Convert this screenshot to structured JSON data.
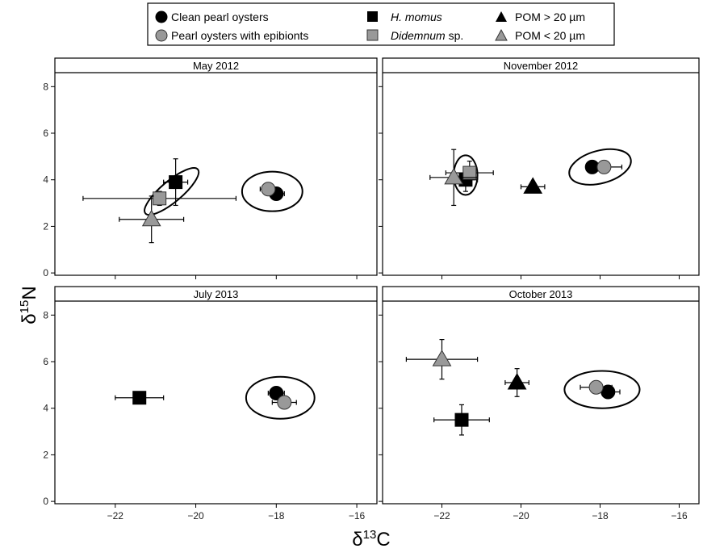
{
  "chart_data": {
    "type": "scatter",
    "xlabel": "δ13C",
    "xlabel_parts": [
      "δ",
      "13",
      "C"
    ],
    "ylabel": "δ15N",
    "ylabel_parts": [
      "δ",
      "15",
      "N"
    ],
    "xlim": [
      -23.5,
      -15.5
    ],
    "ylim": [
      -0.1,
      8.6
    ],
    "xticks": [
      -22,
      -20,
      -18,
      -16
    ],
    "yticks": [
      0,
      2,
      4,
      6,
      8
    ],
    "colors": {
      "black": "#000000",
      "gray": "#999999",
      "light_gray": "#bbbbbb"
    },
    "legend": {
      "placement": "top",
      "entries": [
        {
          "id": "clean",
          "text": "Clean pearl oysters",
          "marker": "circle",
          "color": "#000000"
        },
        {
          "id": "epi",
          "text": "Pearl oysters with epibionts",
          "marker": "circle",
          "color": "#999999"
        },
        {
          "id": "hmomus",
          "text": "H. momus",
          "italic": "H. momus",
          "rest": "",
          "marker": "square",
          "color": "#000000"
        },
        {
          "id": "did",
          "text": "Didemnum sp.",
          "italic": "Didemnum",
          "rest": " sp.",
          "marker": "square",
          "color": "#999999"
        },
        {
          "id": "pomL",
          "text": "POM > 20 µm",
          "marker": "triangle",
          "color": "#000000"
        },
        {
          "id": "pomS",
          "text": "POM < 20 µm",
          "marker": "triangle",
          "color": "#999999"
        }
      ]
    },
    "panels": [
      {
        "title": "May 2012",
        "points": [
          {
            "series": "clean",
            "x": -18.0,
            "y": 3.4,
            "xerr": 0.2,
            "yerr": 0
          },
          {
            "series": "epi",
            "x": -18.2,
            "y": 3.6,
            "xerr": 0.2,
            "yerr": 0
          },
          {
            "series": "hmomus",
            "x": -20.5,
            "y": 3.9,
            "xerr": 0.3,
            "yerr": 1.0
          },
          {
            "series": "did",
            "x": -20.9,
            "y": 3.2,
            "xerr": 1.9,
            "yerr": 0.3
          },
          {
            "series": "pomS",
            "x": -21.1,
            "y": 2.3,
            "xerr": 0.8,
            "yerr": 1.0
          }
        ],
        "ellipses": [
          {
            "cx": -18.1,
            "cy": 3.5,
            "rx": 0.75,
            "ry": 0.85,
            "angle": 0
          },
          {
            "cx": -20.6,
            "cy": 3.5,
            "rx": 0.85,
            "ry": 0.45,
            "angle": -40
          }
        ]
      },
      {
        "title": "November 2012",
        "points": [
          {
            "series": "clean",
            "x": -18.2,
            "y": 4.55,
            "xerr": 0,
            "yerr": 0
          },
          {
            "series": "epi",
            "x": -17.9,
            "y": 4.55,
            "xerr": 0.45,
            "yerr": 0
          },
          {
            "series": "hmomus",
            "x": -21.4,
            "y": 4.0,
            "xerr": 0.3,
            "yerr": 0.5
          },
          {
            "series": "did",
            "x": -21.3,
            "y": 4.3,
            "xerr": 0.6,
            "yerr": 0.5
          },
          {
            "series": "pomL",
            "x": -19.7,
            "y": 3.7,
            "xerr": 0.3,
            "yerr": 0
          },
          {
            "series": "pomS",
            "x": -21.7,
            "y": 4.1,
            "xerr": 0.6,
            "yerr": 1.2
          }
        ],
        "ellipses": [
          {
            "cx": -18.0,
            "cy": 4.55,
            "rx": 0.8,
            "ry": 0.7,
            "angle": -15
          },
          {
            "cx": -21.4,
            "cy": 4.2,
            "rx": 0.3,
            "ry": 0.85,
            "angle": 0
          }
        ]
      },
      {
        "title": "July 2013",
        "points": [
          {
            "series": "clean",
            "x": -18.0,
            "y": 4.65,
            "xerr": 0.2,
            "yerr": 0
          },
          {
            "series": "epi",
            "x": -17.8,
            "y": 4.25,
            "xerr": 0.3,
            "yerr": 0.2
          },
          {
            "series": "hmomus",
            "x": -21.4,
            "y": 4.45,
            "xerr": 0.6,
            "yerr": 0
          }
        ],
        "ellipses": [
          {
            "cx": -17.9,
            "cy": 4.45,
            "rx": 0.85,
            "ry": 0.9,
            "angle": 0
          }
        ]
      },
      {
        "title": "October 2013",
        "points": [
          {
            "series": "clean",
            "x": -17.8,
            "y": 4.7,
            "xerr": 0.3,
            "yerr": 0
          },
          {
            "series": "epi",
            "x": -18.1,
            "y": 4.9,
            "xerr": 0.4,
            "yerr": 0
          },
          {
            "series": "hmomus",
            "x": -21.5,
            "y": 3.5,
            "xerr": 0.7,
            "yerr": 0.65
          },
          {
            "series": "pomL",
            "x": -20.1,
            "y": 5.1,
            "xerr": 0.3,
            "yerr": 0.6
          },
          {
            "series": "pomS",
            "x": -22.0,
            "y": 6.1,
            "xerr": 0.9,
            "yerr": 0.85
          }
        ],
        "ellipses": [
          {
            "cx": -17.95,
            "cy": 4.8,
            "rx": 0.95,
            "ry": 0.8,
            "angle": 0
          }
        ]
      }
    ]
  }
}
